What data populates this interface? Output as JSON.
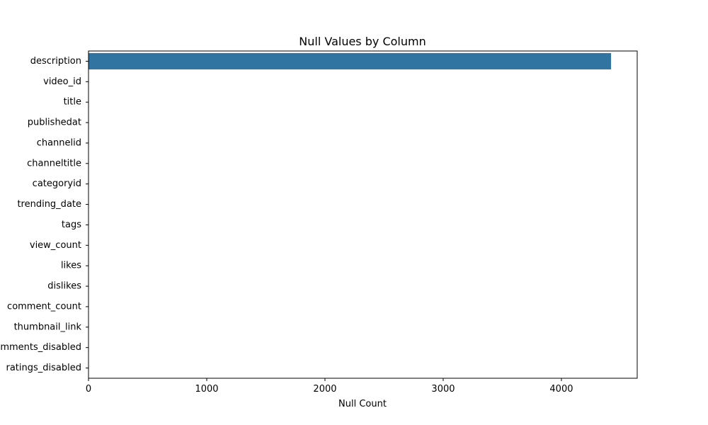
{
  "chart_data": {
    "type": "bar",
    "orientation": "horizontal",
    "title": "Null Values by Column",
    "xlabel": "Null Count",
    "ylabel": "",
    "categories": [
      "description",
      "video_id",
      "title",
      "publishedat",
      "channelid",
      "channeltitle",
      "categoryid",
      "trending_date",
      "tags",
      "view_count",
      "likes",
      "dislikes",
      "comment_count",
      "thumbnail_link",
      "comments_disabled",
      "ratings_disabled"
    ],
    "values": [
      4420,
      0,
      0,
      0,
      0,
      0,
      0,
      0,
      0,
      0,
      0,
      0,
      0,
      0,
      0,
      0
    ],
    "xlim": [
      0,
      4641
    ],
    "xticks": [
      0,
      1000,
      2000,
      3000,
      4000
    ],
    "bar_color": "#3274a1",
    "grid": false,
    "legend": "none"
  }
}
